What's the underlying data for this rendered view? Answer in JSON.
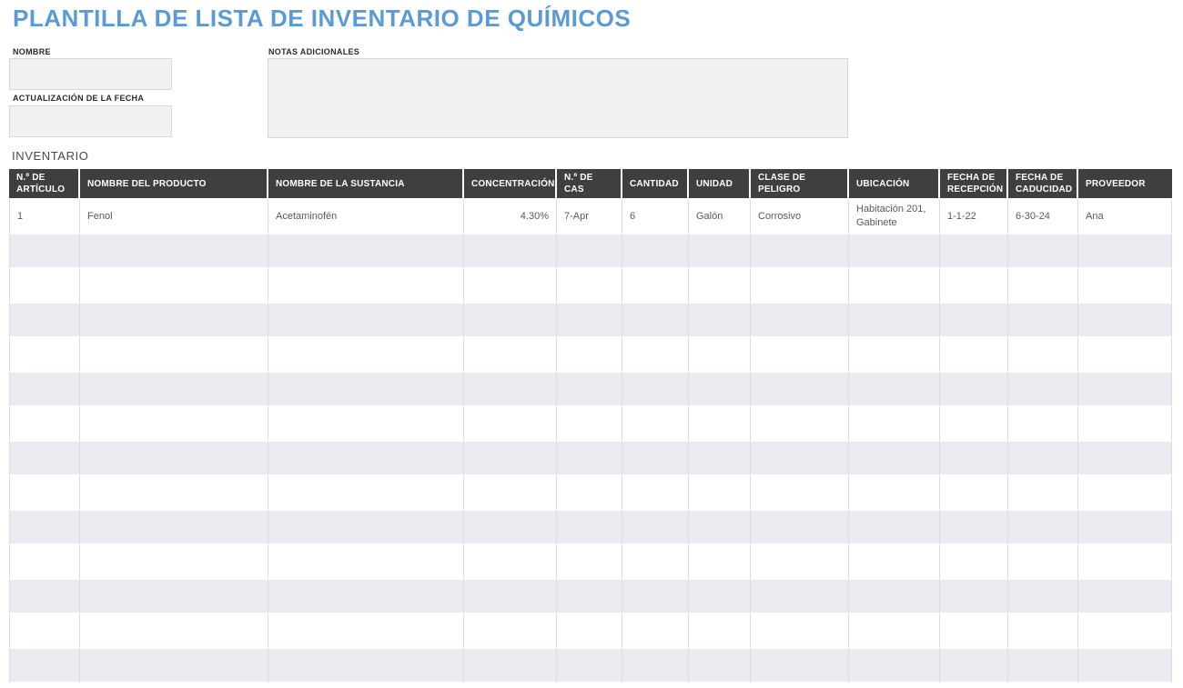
{
  "page": {
    "title": "PLANTILLA DE LISTA DE INVENTARIO DE QUÍMICOS"
  },
  "form": {
    "name": {
      "label": "NOMBRE",
      "value": ""
    },
    "date_updated": {
      "label": "ACTUALIZACIÓN DE LA FECHA",
      "value": ""
    },
    "notes": {
      "label": "NOTAS ADICIONALES",
      "value": ""
    }
  },
  "inventory": {
    "section_label": "INVENTARIO",
    "columns": [
      "N.º DE ARTÍCULO",
      "NOMBRE DEL PRODUCTO",
      "NOMBRE DE LA SUSTANCIA",
      "CONCENTRACIÓN",
      "N.º DE CAS",
      "CANTIDAD",
      "UNIDAD",
      "CLASE DE PELIGRO",
      "UBICACIÓN",
      "FECHA DE RECEPCIÓN",
      "FECHA DE CADUCIDAD",
      "PROVEEDOR"
    ],
    "rows": [
      [
        "1",
        "Fenol",
        "Acetaminofén",
        "4.30%",
        "7-Apr",
        "6",
        "Galón",
        "Corrosivo",
        "Habitación 201, Gabinete",
        "1-1-22",
        "6-30-24",
        "Ana"
      ]
    ],
    "empty_rows": 13,
    "right_aligned_columns": [
      3
    ]
  },
  "colors": {
    "title_blue": "#5b9bd5",
    "header_bg": "#3f3f3f",
    "header_text": "#ffffff",
    "row_stripe": "#e9ebf0",
    "field_bg": "#f1f1f2",
    "field_border": "#d8d8d8"
  }
}
